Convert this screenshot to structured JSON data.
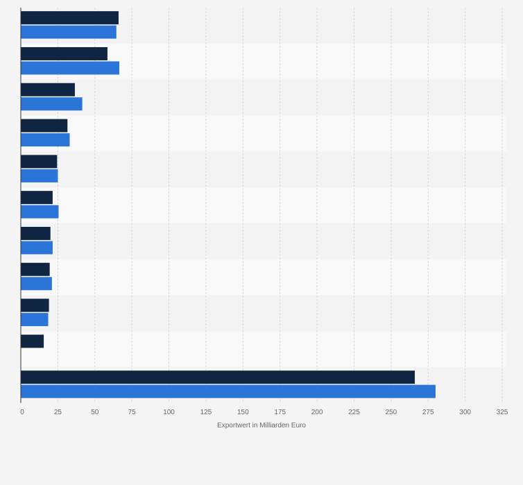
{
  "chart_data": {
    "type": "bar",
    "orientation": "horizontal",
    "categories": [
      "",
      "",
      "",
      "",
      "",
      "",
      "",
      "",
      "",
      "",
      ""
    ],
    "series": [
      {
        "color": "#0f2541",
        "values": [
          66,
          58.5,
          36.5,
          31.5,
          24.5,
          21.5,
          20,
          19.5,
          19,
          15.5,
          266
        ]
      },
      {
        "color": "#2b75d9",
        "values": [
          64.5,
          66.5,
          41.5,
          33,
          25,
          25.5,
          21.5,
          21,
          18.5,
          null,
          280
        ]
      }
    ],
    "xlabel": "Exportwert in Milliarden Euro",
    "ylabel": "",
    "xlim": [
      0,
      325
    ],
    "xticks": [
      0,
      25,
      50,
      75,
      100,
      125,
      150,
      175,
      200,
      225,
      250,
      275,
      300,
      325
    ],
    "xtick_labels": [
      "0",
      "25",
      "50",
      "75",
      "100",
      "125",
      "150",
      "175",
      "200",
      "225",
      "250",
      "275",
      "300",
      "325"
    ],
    "grid": true,
    "legend": "none",
    "colors": {
      "band_dark": "#f3f3f3",
      "band_light": "#f9f9f9",
      "grid": "#d8d8d8",
      "axis": "#333333"
    }
  }
}
